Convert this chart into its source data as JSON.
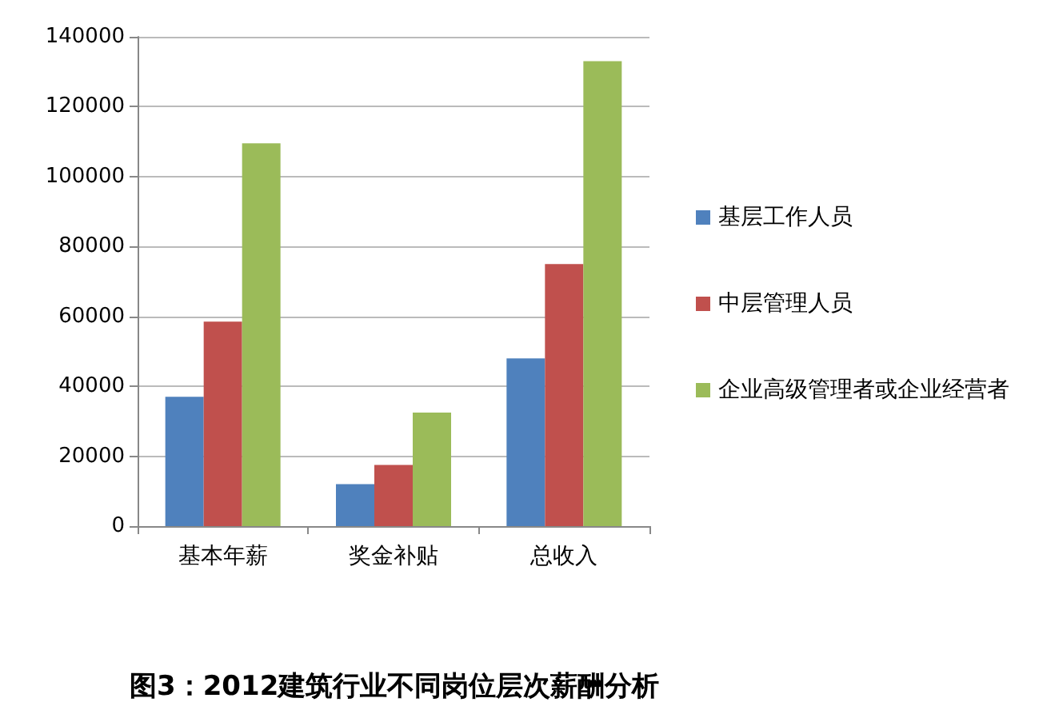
{
  "chart_data": {
    "type": "bar",
    "title": "图3：2012建筑行业不同岗位层次薪酬分析",
    "categories": [
      "基本年薪",
      "奖金补贴",
      "总收入"
    ],
    "series": [
      {
        "name": "基层工作人员",
        "color": "#4f81bd",
        "values": [
          37000,
          12000,
          48000
        ]
      },
      {
        "name": "中层管理人员",
        "color": "#c0504d",
        "values": [
          58500,
          17500,
          75000
        ]
      },
      {
        "name": "企业高级管理者或企业经营者",
        "color": "#9bbb59",
        "values": [
          109500,
          32500,
          133000
        ]
      }
    ],
    "ylim": [
      0,
      140000
    ],
    "yticks": [
      0,
      20000,
      40000,
      60000,
      80000,
      100000,
      120000,
      140000
    ],
    "grid": "y",
    "legend": "right"
  }
}
